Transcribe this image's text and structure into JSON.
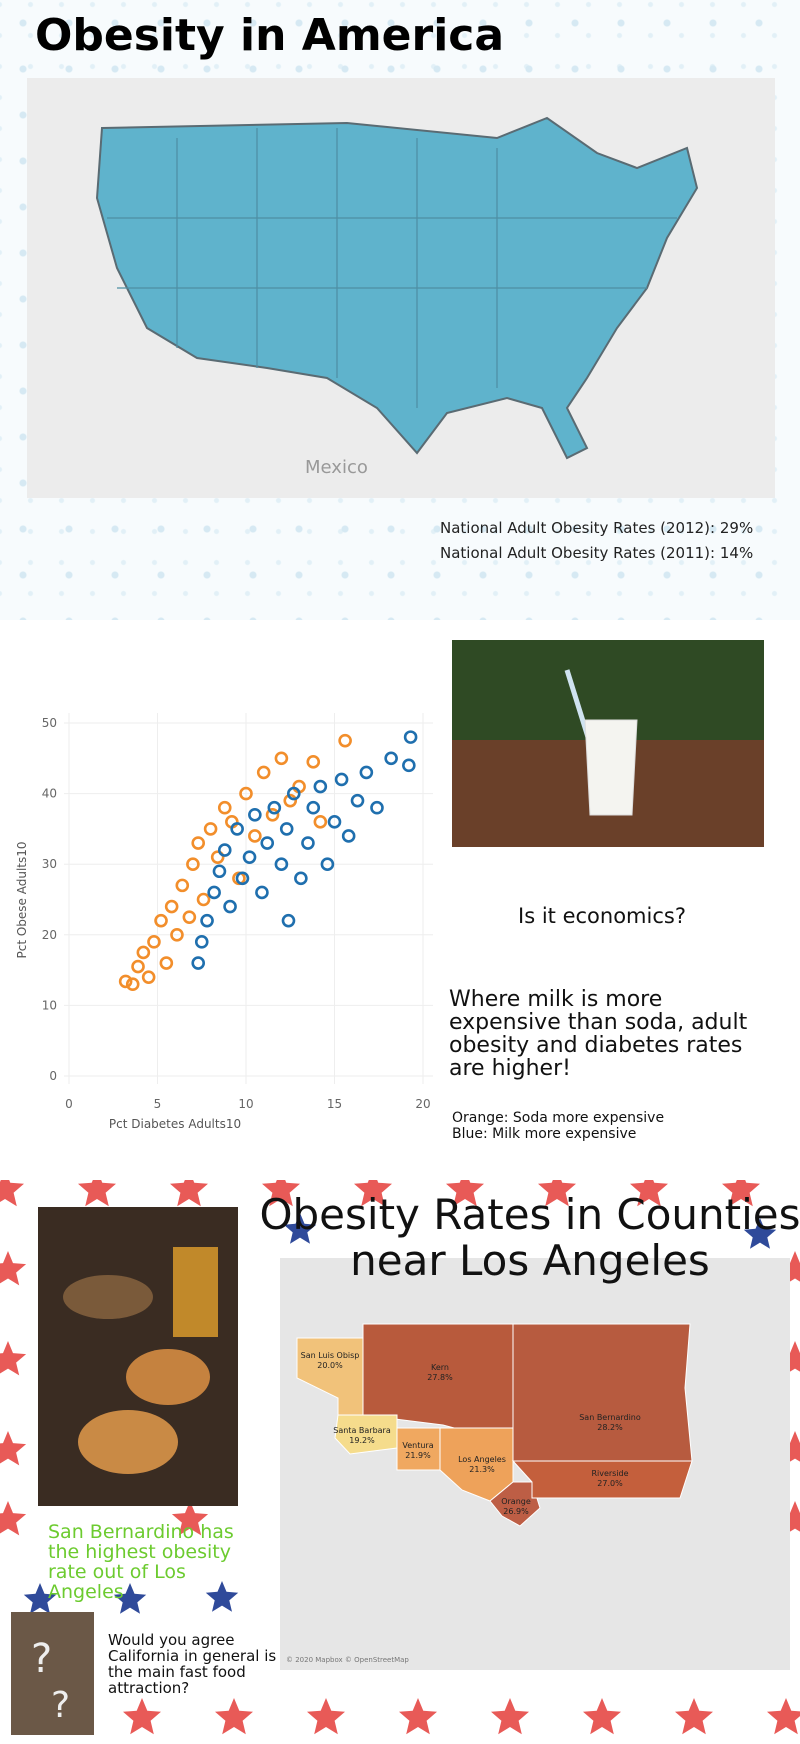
{
  "title": "Obesity in America",
  "us_map": {
    "label": "Mexico"
  },
  "stats": [
    "National Adult Obesity Rates (2012): 29%",
    "National Adult Obesity Rates (2011): 14%"
  ],
  "chart_data": {
    "type": "scatter",
    "x_label": "Pct Diabetes Adults10",
    "y_label": "Pct Obese Adults10",
    "xlim": [
      0,
      20
    ],
    "xticks": [
      0,
      5,
      10,
      15,
      20
    ],
    "ylim": [
      0,
      50
    ],
    "yticks": [
      0,
      10,
      20,
      30,
      40,
      50
    ],
    "grid": true,
    "series": [
      {
        "color": "#f28e2b",
        "x": [
          3.2,
          3.6,
          3.9,
          4.2,
          4.5,
          4.8,
          5.2,
          5.5,
          5.8,
          6.1,
          6.4,
          6.8,
          7,
          7.3,
          7.6,
          8,
          8.4,
          8.8,
          9.2,
          9.6,
          10,
          10.5,
          11,
          11.5,
          12,
          12.5,
          13,
          13.8,
          14.2,
          15.6
        ],
        "values": [
          13.4,
          13,
          15.5,
          17.5,
          14,
          19,
          22,
          16,
          24,
          20,
          27,
          22.5,
          30,
          33,
          25,
          35,
          31,
          38,
          36,
          28,
          40,
          34,
          43,
          37,
          45,
          39,
          41,
          44.5,
          36,
          47.5
        ]
      },
      {
        "color": "#1f6fae",
        "x": [
          7.3,
          7.5,
          7.8,
          8.2,
          8.5,
          8.8,
          9.1,
          9.5,
          9.8,
          10.2,
          10.5,
          10.9,
          11.2,
          11.6,
          12,
          12.3,
          12.7,
          13.1,
          13.5,
          13.8,
          14.2,
          14.6,
          15,
          15.4,
          15.8,
          16.3,
          16.8,
          17.4,
          18.2,
          19.3,
          19.2,
          12.4
        ],
        "values": [
          16,
          19,
          22,
          26,
          29,
          32,
          24,
          35,
          28,
          31,
          37,
          26,
          33,
          38,
          30,
          35,
          40,
          28,
          33,
          38,
          41,
          30,
          36,
          42,
          34,
          39,
          43,
          38,
          45,
          48,
          44,
          22
        ]
      }
    ]
  },
  "question": "Is it economics?",
  "finding": "Where milk is more expensive than soda, adult obesity and diabetes rates are higher!",
  "legend_notes": [
    "Orange: Soda more expensive",
    "Blue: Milk more expensive"
  ],
  "la_map": {
    "title": "Obesity Rates in Counties near Los Angeles",
    "counties": [
      {
        "name": "San Luis Obisp",
        "value": "20.0%"
      },
      {
        "name": "Kern",
        "value": "27.8%"
      },
      {
        "name": "San Bernardino",
        "value": "28.2%"
      },
      {
        "name": "Santa Barbara",
        "value": "19.2%"
      },
      {
        "name": "Ventura",
        "value": "21.9%"
      },
      {
        "name": "Los Angeles",
        "value": "21.3%"
      },
      {
        "name": "Orange",
        "value": "26.9%"
      },
      {
        "name": "Riverside",
        "value": "27.0%"
      }
    ],
    "credit": "© 2020 Mapbox © OpenStreetMap"
  },
  "highlight": "San Bernardino has the highest obesity rate out of Los Angeles",
  "prompt": "Would you agree California in general is the main fast food attraction?"
}
